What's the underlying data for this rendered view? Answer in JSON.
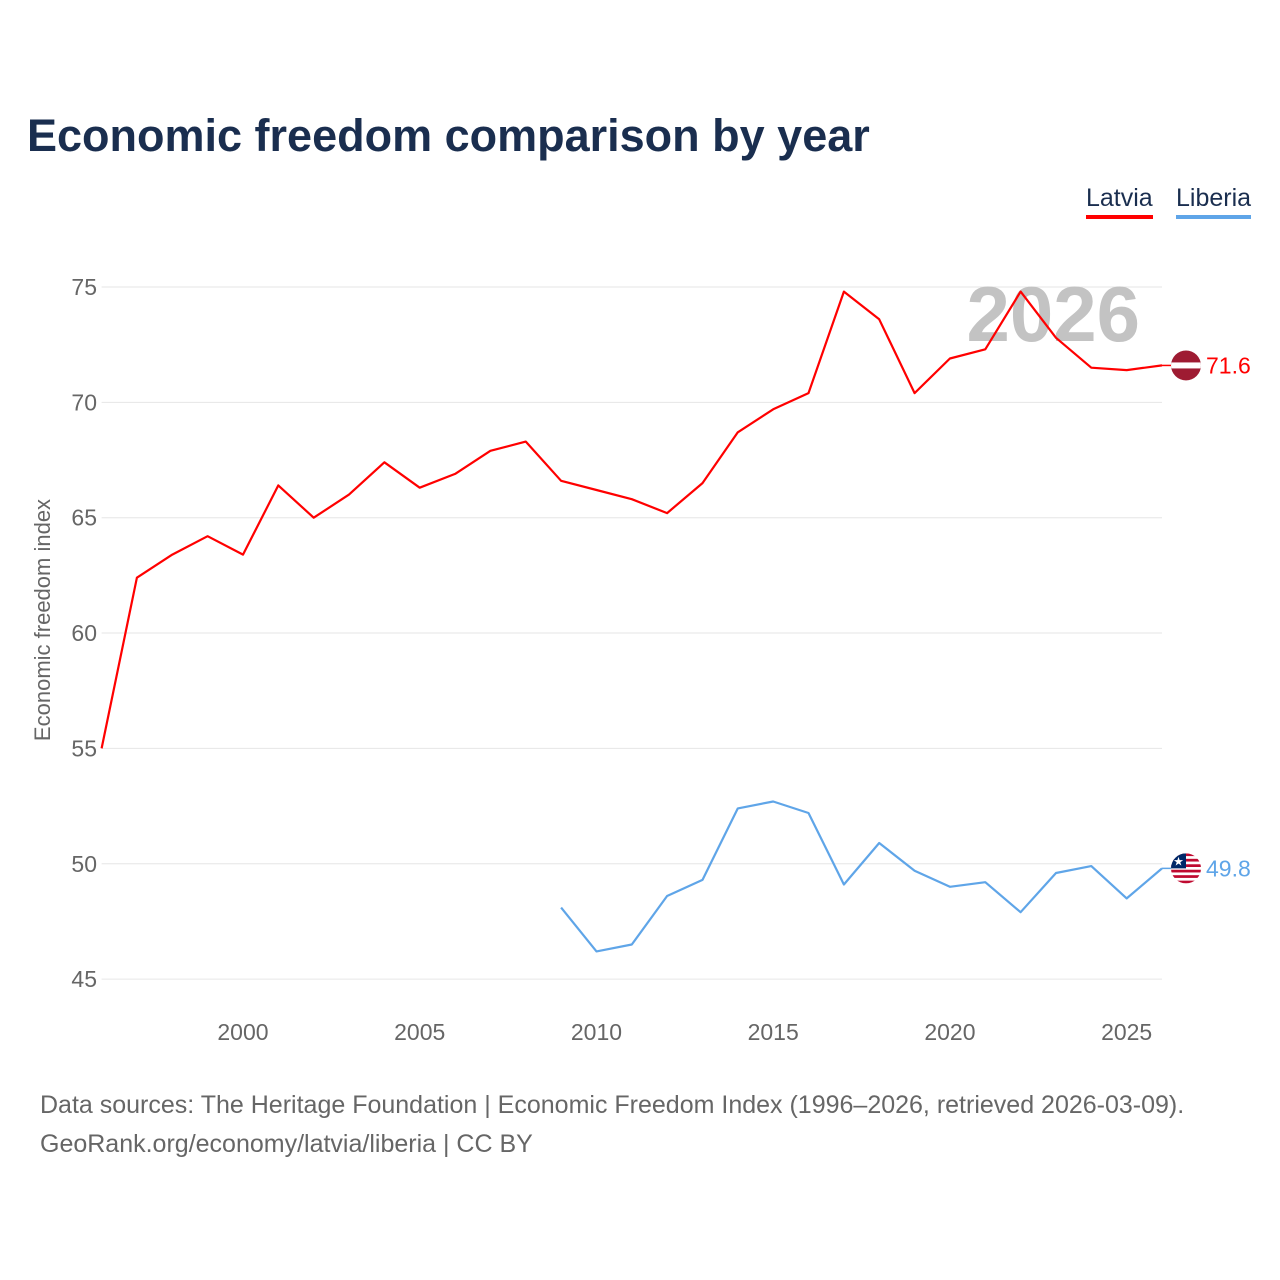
{
  "chart_data": {
    "type": "line",
    "title": "Economic freedom comparison by year",
    "xlabel": "",
    "ylabel": "Economic freedom index",
    "xlim": [
      1996,
      2026
    ],
    "ylim": [
      44,
      77
    ],
    "yticks": [
      45,
      50,
      55,
      60,
      65,
      70,
      75
    ],
    "xticks": [
      2000,
      2005,
      2010,
      2015,
      2020,
      2025
    ],
    "grid": true,
    "legend": "top-right",
    "watermark_year": "2026",
    "series": [
      {
        "name": "Latvia",
        "color": "#ff0000",
        "end_label": "71.6",
        "x": [
          1996,
          1997,
          1998,
          1999,
          2000,
          2001,
          2002,
          2003,
          2004,
          2005,
          2006,
          2007,
          2008,
          2009,
          2010,
          2011,
          2012,
          2013,
          2014,
          2015,
          2016,
          2017,
          2018,
          2019,
          2020,
          2021,
          2022,
          2023,
          2024,
          2025,
          2026
        ],
        "values": [
          55.0,
          62.4,
          63.4,
          64.2,
          63.4,
          66.4,
          65.0,
          66.0,
          67.4,
          66.3,
          66.9,
          67.9,
          68.3,
          66.6,
          66.2,
          65.8,
          65.2,
          66.5,
          68.7,
          69.7,
          70.4,
          74.8,
          73.6,
          70.4,
          71.9,
          72.3,
          74.8,
          72.8,
          71.5,
          71.4,
          71.6
        ]
      },
      {
        "name": "Liberia",
        "color": "#5fa5e8",
        "end_label": "49.8",
        "x": [
          2009,
          2010,
          2011,
          2012,
          2013,
          2014,
          2015,
          2016,
          2017,
          2018,
          2019,
          2020,
          2021,
          2022,
          2023,
          2024,
          2025,
          2026
        ],
        "values": [
          48.1,
          46.2,
          46.5,
          48.6,
          49.3,
          52.4,
          52.7,
          52.2,
          49.1,
          50.9,
          49.7,
          49.0,
          49.2,
          47.9,
          49.6,
          49.9,
          48.5,
          49.8
        ]
      }
    ]
  },
  "footer": {
    "line1": "Data sources: The Heritage Foundation | Economic Freedom Index (1996–2026, retrieved 2026-03-09).",
    "line2": "GeoRank.org/economy/latvia/liberia | CC BY"
  }
}
